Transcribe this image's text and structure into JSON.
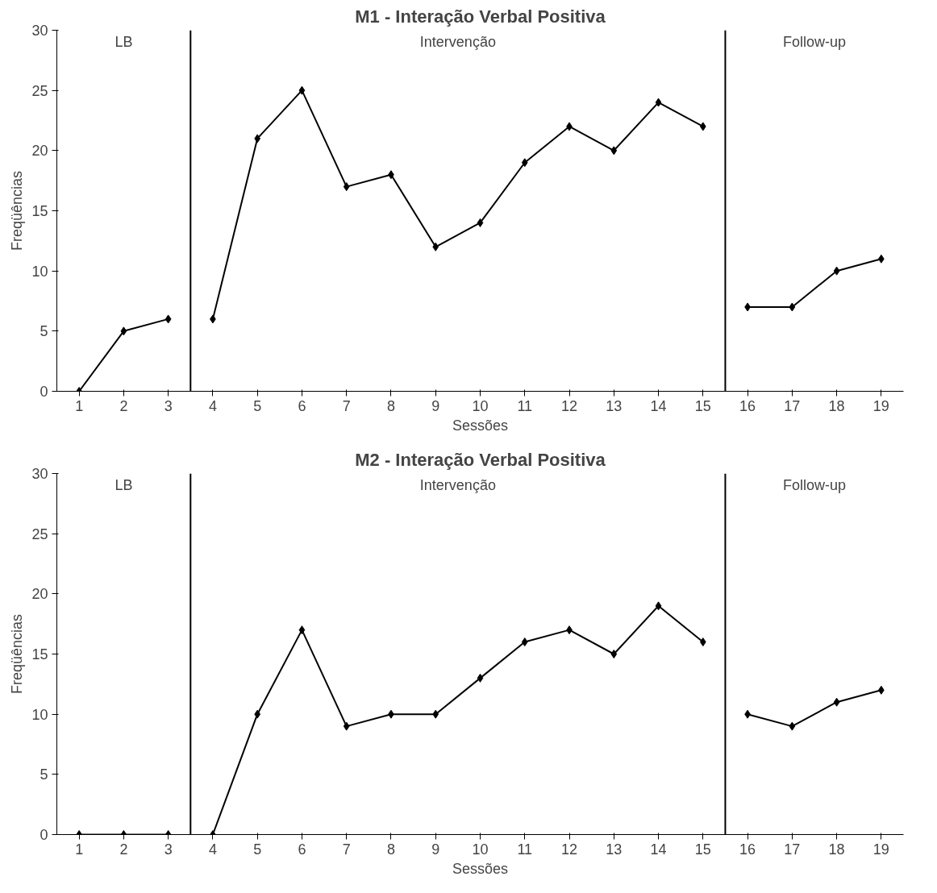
{
  "chart_data": [
    {
      "type": "line",
      "title": "M1 - Interação Verbal Positiva",
      "xlabel": "Sessões",
      "ylabel": "Freqüências",
      "series": [
        {
          "color": "#000000",
          "x": [
            1,
            2,
            3
          ],
          "values": [
            0,
            5,
            6
          ]
        },
        {
          "color": "#000000",
          "x": [
            4,
            5,
            6,
            7,
            8,
            9,
            10,
            11,
            12,
            13,
            14,
            15
          ],
          "values": [
            6,
            21,
            25,
            17,
            18,
            12,
            14,
            19,
            22,
            20,
            24,
            22
          ]
        },
        {
          "color": "#000000",
          "x": [
            16,
            17,
            18,
            19
          ],
          "values": [
            7,
            7,
            10,
            11
          ]
        }
      ],
      "xlim": [
        0.5,
        19.5
      ],
      "xticks": [
        1,
        2,
        3,
        4,
        5,
        6,
        7,
        8,
        9,
        10,
        11,
        12,
        13,
        14,
        15,
        16,
        17,
        18,
        19
      ],
      "ylim": [
        0,
        30
      ],
      "yticks": [
        0,
        5,
        10,
        15,
        20,
        25,
        30
      ],
      "ref_lines": [
        {
          "axis": "x",
          "value": 3.5,
          "color": "#000000"
        },
        {
          "axis": "x",
          "value": 15.5,
          "color": "#000000"
        }
      ],
      "annotations": [
        "LB",
        "Intervenção",
        "Follow-up"
      ],
      "grid": false,
      "marker": "diamond",
      "line_style": "solid"
    },
    {
      "type": "line",
      "title": "M2 - Interação Verbal Positiva",
      "xlabel": "Sessões",
      "ylabel": "Freqüências",
      "series": [
        {
          "color": "#000000",
          "x": [
            1,
            2,
            3
          ],
          "values": [
            0,
            0,
            0
          ]
        },
        {
          "color": "#000000",
          "x": [
            4,
            5,
            6,
            7,
            8,
            9,
            10,
            11,
            12,
            13,
            14,
            15
          ],
          "values": [
            0,
            10,
            17,
            9,
            10,
            10,
            13,
            16,
            17,
            15,
            19,
            16
          ]
        },
        {
          "color": "#000000",
          "x": [
            16,
            17,
            18,
            19
          ],
          "values": [
            10,
            9,
            11,
            12
          ]
        }
      ],
      "xlim": [
        0.5,
        19.5
      ],
      "xticks": [
        1,
        2,
        3,
        4,
        5,
        6,
        7,
        8,
        9,
        10,
        11,
        12,
        13,
        14,
        15,
        16,
        17,
        18,
        19
      ],
      "ylim": [
        0,
        30
      ],
      "yticks": [
        0,
        5,
        10,
        15,
        20,
        25,
        30
      ],
      "ref_lines": [
        {
          "axis": "x",
          "value": 3.5,
          "color": "#000000"
        },
        {
          "axis": "x",
          "value": 15.5,
          "color": "#000000"
        }
      ],
      "annotations": [
        "LB",
        "Intervenção",
        "Follow-up"
      ],
      "grid": false,
      "marker": "diamond",
      "line_style": "solid"
    }
  ]
}
